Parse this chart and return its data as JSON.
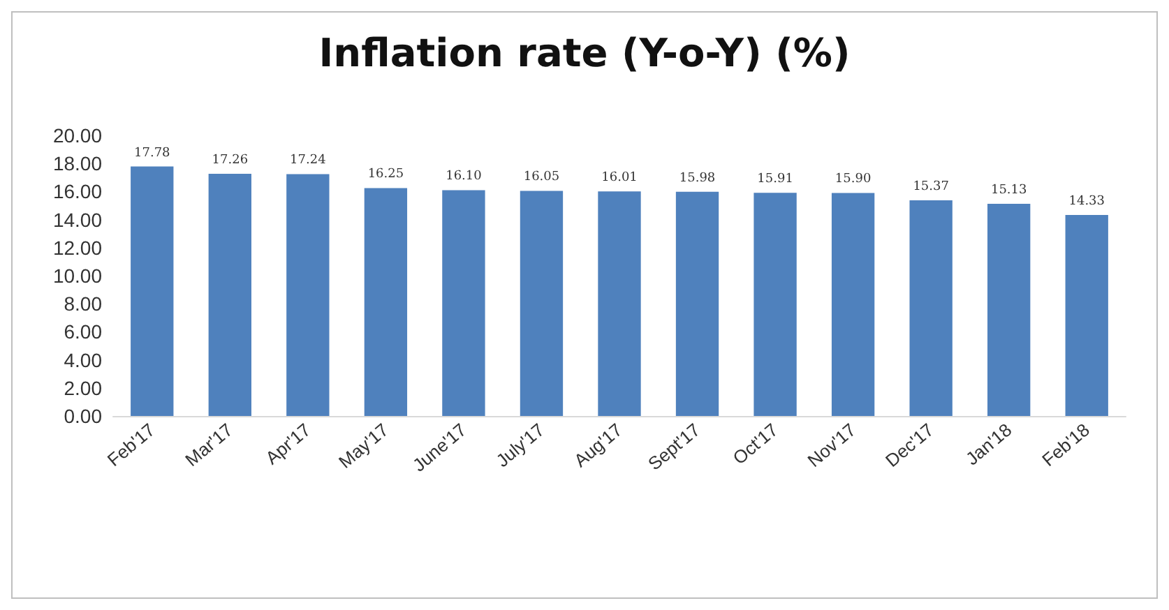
{
  "chart_data": {
    "type": "bar",
    "title": "Inflation rate (Y-o-Y) (%)",
    "categories": [
      "Feb'17",
      "Mar'17",
      "Apr'17",
      "May'17",
      "June'17",
      "July'17",
      "Aug'17",
      "Sept'17",
      "Oct'17",
      "Nov'17",
      "Dec'17",
      "Jan'18",
      "Feb'18"
    ],
    "values": [
      17.78,
      17.26,
      17.24,
      16.25,
      16.1,
      16.05,
      16.01,
      15.98,
      15.91,
      15.9,
      15.37,
      15.13,
      14.33
    ],
    "value_labels": [
      "17.78",
      "17.26",
      "17.24",
      "16.25",
      "16.10",
      "16.05",
      "16.01",
      "15.98",
      "15.91",
      "15.90",
      "15.37",
      "15.13",
      "14.33"
    ],
    "color": "#4f81bd",
    "ylim": [
      0,
      20
    ],
    "yticks": [
      {
        "value": 0,
        "label": "0.00"
      },
      {
        "value": 2,
        "label": "2.00"
      },
      {
        "value": 4,
        "label": "4.00"
      },
      {
        "value": 6,
        "label": "6.00"
      },
      {
        "value": 8,
        "label": "8.00"
      },
      {
        "value": 10,
        "label": "10.00"
      },
      {
        "value": 12,
        "label": "12.00"
      },
      {
        "value": 14,
        "label": "14.00"
      },
      {
        "value": 16,
        "label": "16.00"
      },
      {
        "value": 18,
        "label": "18.00"
      },
      {
        "value": 20,
        "label": "20.00"
      }
    ],
    "grid": false
  }
}
